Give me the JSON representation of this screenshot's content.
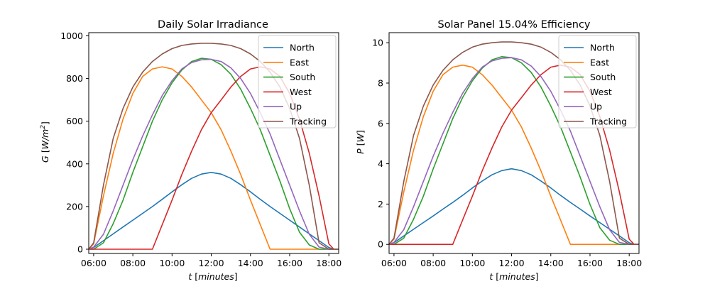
{
  "chart_data": [
    {
      "type": "line",
      "title": "Daily Solar Irradiance",
      "xlabel": "t [minutes]",
      "ylabel": "G [W/m²]",
      "xlim": [
        "05:45",
        "18:30"
      ],
      "ylim": [
        -20,
        1015
      ],
      "xticks": [
        "06:00",
        "08:00",
        "10:00",
        "12:00",
        "14:00",
        "16:00",
        "18:00"
      ],
      "yticks": [
        0,
        200,
        400,
        600,
        800,
        1000
      ],
      "grid": false,
      "legend_position": "upper-right",
      "series": [
        {
          "name": "North",
          "color": "#1f77b4",
          "x": [
            "05:45",
            "06:00",
            "06:30",
            "07:00",
            "07:30",
            "08:00",
            "08:30",
            "09:00",
            "09:30",
            "10:00",
            "10:30",
            "11:00",
            "11:30",
            "12:00",
            "12:30",
            "13:00",
            "13:30",
            "14:00",
            "14:30",
            "15:00",
            "15:30",
            "16:00",
            "16:30",
            "17:00",
            "17:30",
            "18:00",
            "18:15",
            "18:30"
          ],
          "y": [
            0,
            8,
            40,
            72,
            104,
            136,
            168,
            200,
            234,
            269,
            302,
            332,
            352,
            360,
            352,
            332,
            302,
            269,
            234,
            200,
            168,
            136,
            104,
            72,
            40,
            8,
            0,
            0
          ]
        },
        {
          "name": "East",
          "color": "#ff7f0e",
          "x": [
            "05:45",
            "06:00",
            "06:30",
            "07:00",
            "07:30",
            "08:00",
            "08:30",
            "09:00",
            "09:30",
            "10:00",
            "10:30",
            "11:00",
            "11:30",
            "12:00",
            "12:30",
            "13:00",
            "13:30",
            "14:00",
            "14:30",
            "15:00",
            "15:30",
            "16:00",
            "16:30",
            "17:00",
            "17:30",
            "18:00",
            "18:15",
            "18:30"
          ],
          "y": [
            0,
            25,
            250,
            450,
            610,
            730,
            810,
            845,
            855,
            845,
            810,
            760,
            700,
            640,
            560,
            460,
            350,
            230,
            115,
            0,
            0,
            0,
            0,
            0,
            0,
            0,
            0,
            0
          ]
        },
        {
          "name": "South",
          "color": "#2ca02c",
          "x": [
            "05:45",
            "06:00",
            "06:30",
            "07:00",
            "07:30",
            "08:00",
            "08:30",
            "09:00",
            "09:30",
            "10:00",
            "10:30",
            "11:00",
            "11:30",
            "12:00",
            "12:30",
            "13:00",
            "13:30",
            "14:00",
            "14:30",
            "15:00",
            "15:30",
            "16:00",
            "16:30",
            "17:00",
            "17:30",
            "18:00",
            "18:15",
            "18:30"
          ],
          "y": [
            0,
            0,
            30,
            120,
            230,
            360,
            480,
            600,
            700,
            780,
            840,
            880,
            895,
            890,
            865,
            820,
            750,
            660,
            560,
            440,
            320,
            190,
            80,
            20,
            0,
            0,
            0,
            0
          ]
        },
        {
          "name": "West",
          "color": "#d62728",
          "x": [
            "05:45",
            "06:00",
            "06:30",
            "07:00",
            "07:30",
            "08:00",
            "08:30",
            "09:00",
            "09:30",
            "10:00",
            "10:30",
            "11:00",
            "11:30",
            "12:00",
            "12:30",
            "13:00",
            "13:30",
            "14:00",
            "14:30",
            "15:00",
            "15:30",
            "16:00",
            "16:30",
            "17:00",
            "17:30",
            "18:00",
            "18:15",
            "18:30"
          ],
          "y": [
            0,
            0,
            0,
            0,
            0,
            0,
            0,
            0,
            115,
            230,
            350,
            460,
            560,
            640,
            700,
            760,
            810,
            845,
            855,
            845,
            810,
            730,
            610,
            450,
            250,
            25,
            0,
            0
          ]
        },
        {
          "name": "Up",
          "color": "#9467bd",
          "x": [
            "05:45",
            "06:00",
            "06:30",
            "07:00",
            "07:30",
            "08:00",
            "08:30",
            "09:00",
            "09:30",
            "10:00",
            "10:30",
            "11:00",
            "11:30",
            "12:00",
            "12:30",
            "13:00",
            "13:30",
            "14:00",
            "14:30",
            "15:00",
            "15:30",
            "16:00",
            "16:30",
            "17:00",
            "17:30",
            "18:00",
            "18:15",
            "18:30"
          ],
          "y": [
            0,
            10,
            70,
            180,
            300,
            420,
            530,
            630,
            720,
            790,
            845,
            875,
            888,
            890,
            880,
            850,
            800,
            730,
            640,
            540,
            420,
            300,
            180,
            70,
            10,
            0,
            0,
            0
          ]
        },
        {
          "name": "Tracking",
          "color": "#8c564b",
          "x": [
            "05:45",
            "06:00",
            "06:30",
            "07:00",
            "07:30",
            "08:00",
            "08:30",
            "09:00",
            "09:30",
            "10:00",
            "10:30",
            "11:00",
            "11:30",
            "12:00",
            "12:30",
            "13:00",
            "13:30",
            "14:00",
            "14:30",
            "15:00",
            "15:30",
            "16:00",
            "16:30",
            "17:00",
            "17:30",
            "18:00",
            "18:15",
            "18:30"
          ],
          "y": [
            0,
            30,
            300,
            520,
            660,
            760,
            830,
            880,
            915,
            940,
            955,
            962,
            965,
            965,
            962,
            955,
            940,
            915,
            880,
            830,
            760,
            660,
            520,
            300,
            30,
            0,
            0,
            0
          ]
        }
      ]
    },
    {
      "type": "line",
      "title": "Solar Panel 15.04% Efficiency",
      "xlabel": "t [minutes]",
      "ylabel": "P [W]",
      "xlim": [
        "05:45",
        "18:30"
      ],
      "ylim": [
        -0.45,
        10.5
      ],
      "xticks": [
        "06:00",
        "08:00",
        "10:00",
        "12:00",
        "14:00",
        "16:00",
        "18:00"
      ],
      "yticks": [
        0,
        2,
        4,
        6,
        8,
        10
      ],
      "grid": false,
      "legend_position": "upper-right",
      "series": [
        {
          "name": "North",
          "color": "#1f77b4",
          "x": [
            "05:45",
            "06:00",
            "06:30",
            "07:00",
            "07:30",
            "08:00",
            "08:30",
            "09:00",
            "09:30",
            "10:00",
            "10:30",
            "11:00",
            "11:30",
            "12:00",
            "12:30",
            "13:00",
            "13:30",
            "14:00",
            "14:30",
            "15:00",
            "15:30",
            "16:00",
            "16:30",
            "17:00",
            "17:30",
            "18:00",
            "18:15",
            "18:30"
          ],
          "y": [
            0,
            0.08,
            0.42,
            0.75,
            1.08,
            1.41,
            1.75,
            2.08,
            2.43,
            2.8,
            3.14,
            3.45,
            3.66,
            3.75,
            3.66,
            3.45,
            3.14,
            2.8,
            2.43,
            2.08,
            1.75,
            1.41,
            1.08,
            0.75,
            0.42,
            0.08,
            0,
            0
          ]
        },
        {
          "name": "East",
          "color": "#ff7f0e",
          "x": [
            "05:45",
            "06:00",
            "06:30",
            "07:00",
            "07:30",
            "08:00",
            "08:30",
            "09:00",
            "09:30",
            "10:00",
            "10:30",
            "11:00",
            "11:30",
            "12:00",
            "12:30",
            "13:00",
            "13:30",
            "14:00",
            "14:30",
            "15:00",
            "15:30",
            "16:00",
            "16:30",
            "17:00",
            "17:30",
            "18:00",
            "18:15",
            "18:30"
          ],
          "y": [
            0,
            0.26,
            2.6,
            4.68,
            6.34,
            7.59,
            8.42,
            8.79,
            8.89,
            8.79,
            8.42,
            7.9,
            7.28,
            6.66,
            5.82,
            4.78,
            3.64,
            2.39,
            1.2,
            0,
            0,
            0,
            0,
            0,
            0,
            0,
            0,
            0
          ]
        },
        {
          "name": "South",
          "color": "#2ca02c",
          "x": [
            "05:45",
            "06:00",
            "06:30",
            "07:00",
            "07:30",
            "08:00",
            "08:30",
            "09:00",
            "09:30",
            "10:00",
            "10:30",
            "11:00",
            "11:30",
            "12:00",
            "12:30",
            "13:00",
            "13:30",
            "14:00",
            "14:30",
            "15:00",
            "15:30",
            "16:00",
            "16:30",
            "17:00",
            "17:30",
            "18:00",
            "18:15",
            "18:30"
          ],
          "y": [
            0,
            0,
            0.31,
            1.25,
            2.39,
            3.74,
            4.99,
            6.24,
            7.28,
            8.11,
            8.74,
            9.15,
            9.31,
            9.26,
            9.0,
            8.53,
            7.8,
            6.86,
            5.82,
            4.58,
            3.33,
            1.98,
            0.83,
            0.21,
            0,
            0,
            0,
            0
          ]
        },
        {
          "name": "West",
          "color": "#d62728",
          "x": [
            "05:45",
            "06:00",
            "06:30",
            "07:00",
            "07:30",
            "08:00",
            "08:30",
            "09:00",
            "09:30",
            "10:00",
            "10:30",
            "11:00",
            "11:30",
            "12:00",
            "12:30",
            "13:00",
            "13:30",
            "14:00",
            "14:30",
            "15:00",
            "15:30",
            "16:00",
            "16:30",
            "17:00",
            "17:30",
            "18:00",
            "18:15",
            "18:30"
          ],
          "y": [
            0,
            0,
            0,
            0,
            0,
            0,
            0,
            0,
            1.2,
            2.39,
            3.64,
            4.78,
            5.82,
            6.66,
            7.28,
            7.9,
            8.42,
            8.79,
            8.89,
            8.79,
            8.42,
            7.59,
            6.34,
            4.68,
            2.6,
            0.26,
            0,
            0
          ]
        },
        {
          "name": "Up",
          "color": "#9467bd",
          "x": [
            "05:45",
            "06:00",
            "06:30",
            "07:00",
            "07:30",
            "08:00",
            "08:30",
            "09:00",
            "09:30",
            "10:00",
            "10:30",
            "11:00",
            "11:30",
            "12:00",
            "12:30",
            "13:00",
            "13:30",
            "14:00",
            "14:30",
            "15:00",
            "15:30",
            "16:00",
            "16:30",
            "17:00",
            "17:30",
            "18:00",
            "18:15",
            "18:30"
          ],
          "y": [
            0,
            0.1,
            0.73,
            1.87,
            3.12,
            4.37,
            5.51,
            6.55,
            7.49,
            8.22,
            8.79,
            9.1,
            9.23,
            9.26,
            9.15,
            8.84,
            8.32,
            7.59,
            6.66,
            5.62,
            4.37,
            3.12,
            1.87,
            0.73,
            0.1,
            0,
            0,
            0
          ]
        },
        {
          "name": "Tracking",
          "color": "#8c564b",
          "x": [
            "05:45",
            "06:00",
            "06:30",
            "07:00",
            "07:30",
            "08:00",
            "08:30",
            "09:00",
            "09:30",
            "10:00",
            "10:30",
            "11:00",
            "11:30",
            "12:00",
            "12:30",
            "13:00",
            "13:30",
            "14:00",
            "14:30",
            "15:00",
            "15:30",
            "16:00",
            "16:30",
            "17:00",
            "17:30",
            "18:00",
            "18:15",
            "18:30"
          ],
          "y": [
            0,
            0.31,
            3.12,
            5.41,
            6.86,
            7.9,
            8.63,
            9.15,
            9.52,
            9.78,
            9.93,
            10.0,
            10.04,
            10.04,
            10.0,
            9.93,
            9.78,
            9.52,
            9.15,
            8.63,
            7.9,
            6.86,
            5.41,
            3.12,
            0.31,
            0,
            0,
            0
          ]
        }
      ]
    }
  ]
}
